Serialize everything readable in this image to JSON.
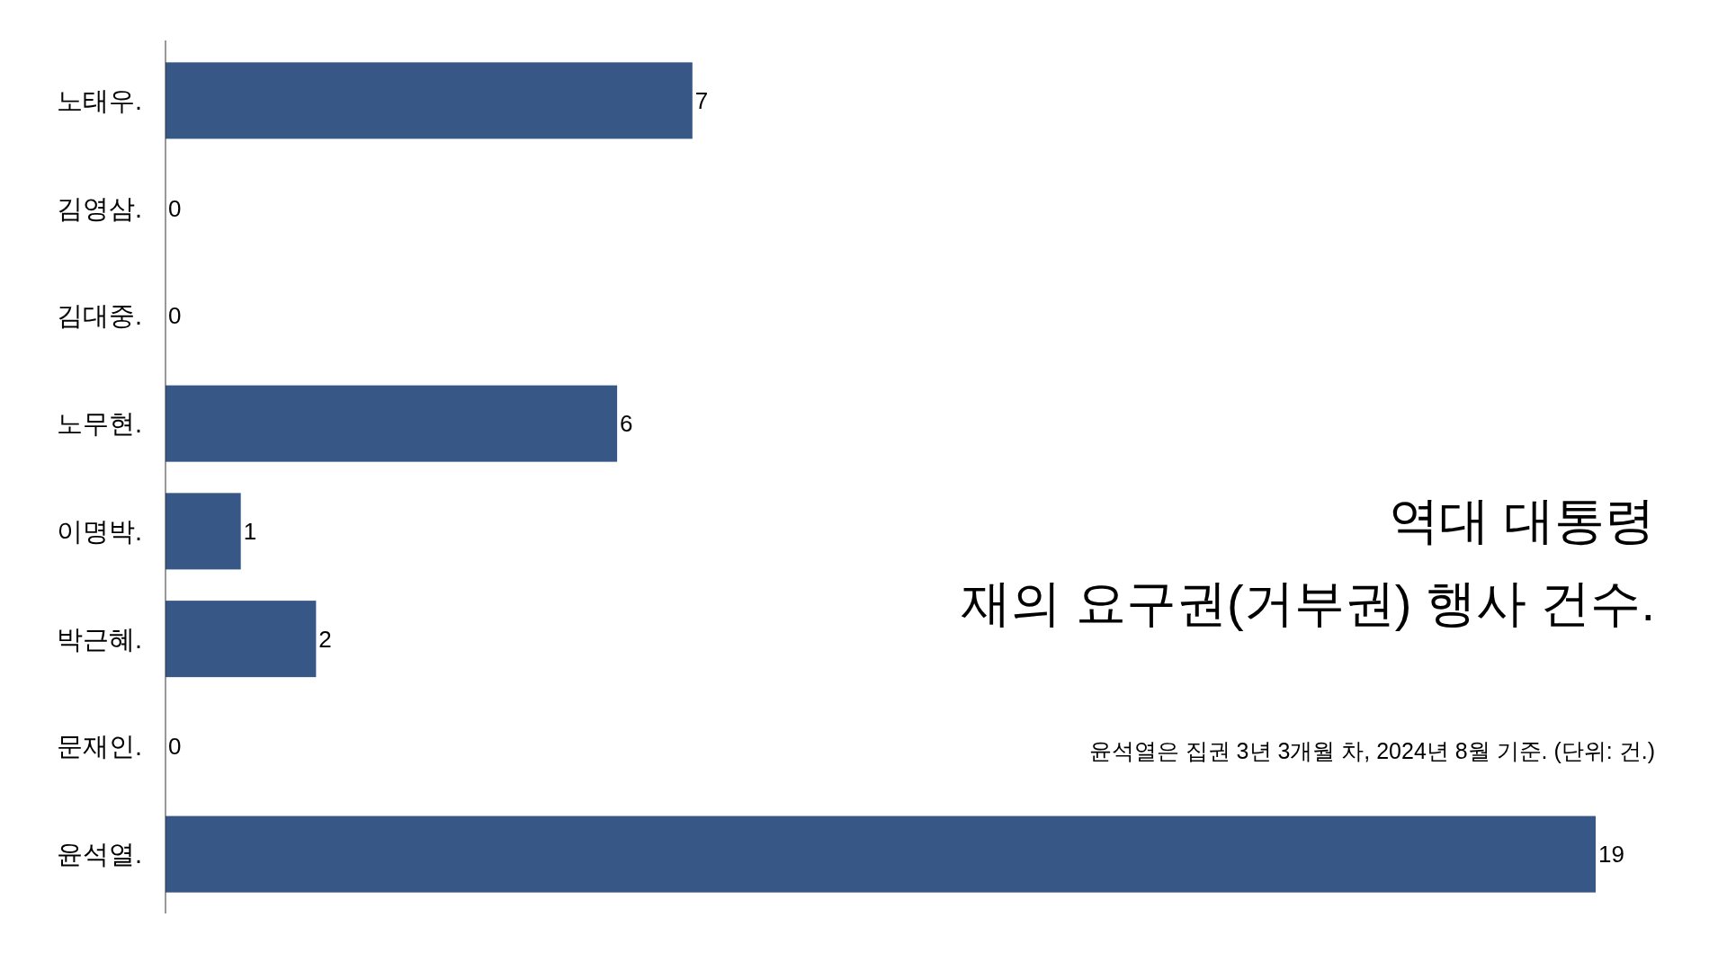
{
  "chart_data": {
    "type": "bar",
    "orientation": "horizontal",
    "title": "역대 대통령\n재의 요구권(거부권) 행사 건수.",
    "subtitle": "윤석열은 집권 3년 3개월 차, 2024년 8월 기준. (단위: 건.)",
    "categories": [
      "노태우.",
      "김영삼.",
      "김대중.",
      "노무현.",
      "이명박.",
      "박근혜.",
      "문재인.",
      "윤석열."
    ],
    "values": [
      7,
      0,
      0,
      6,
      1,
      2,
      0,
      19
    ],
    "color": "#375786",
    "data_labels": true
  }
}
